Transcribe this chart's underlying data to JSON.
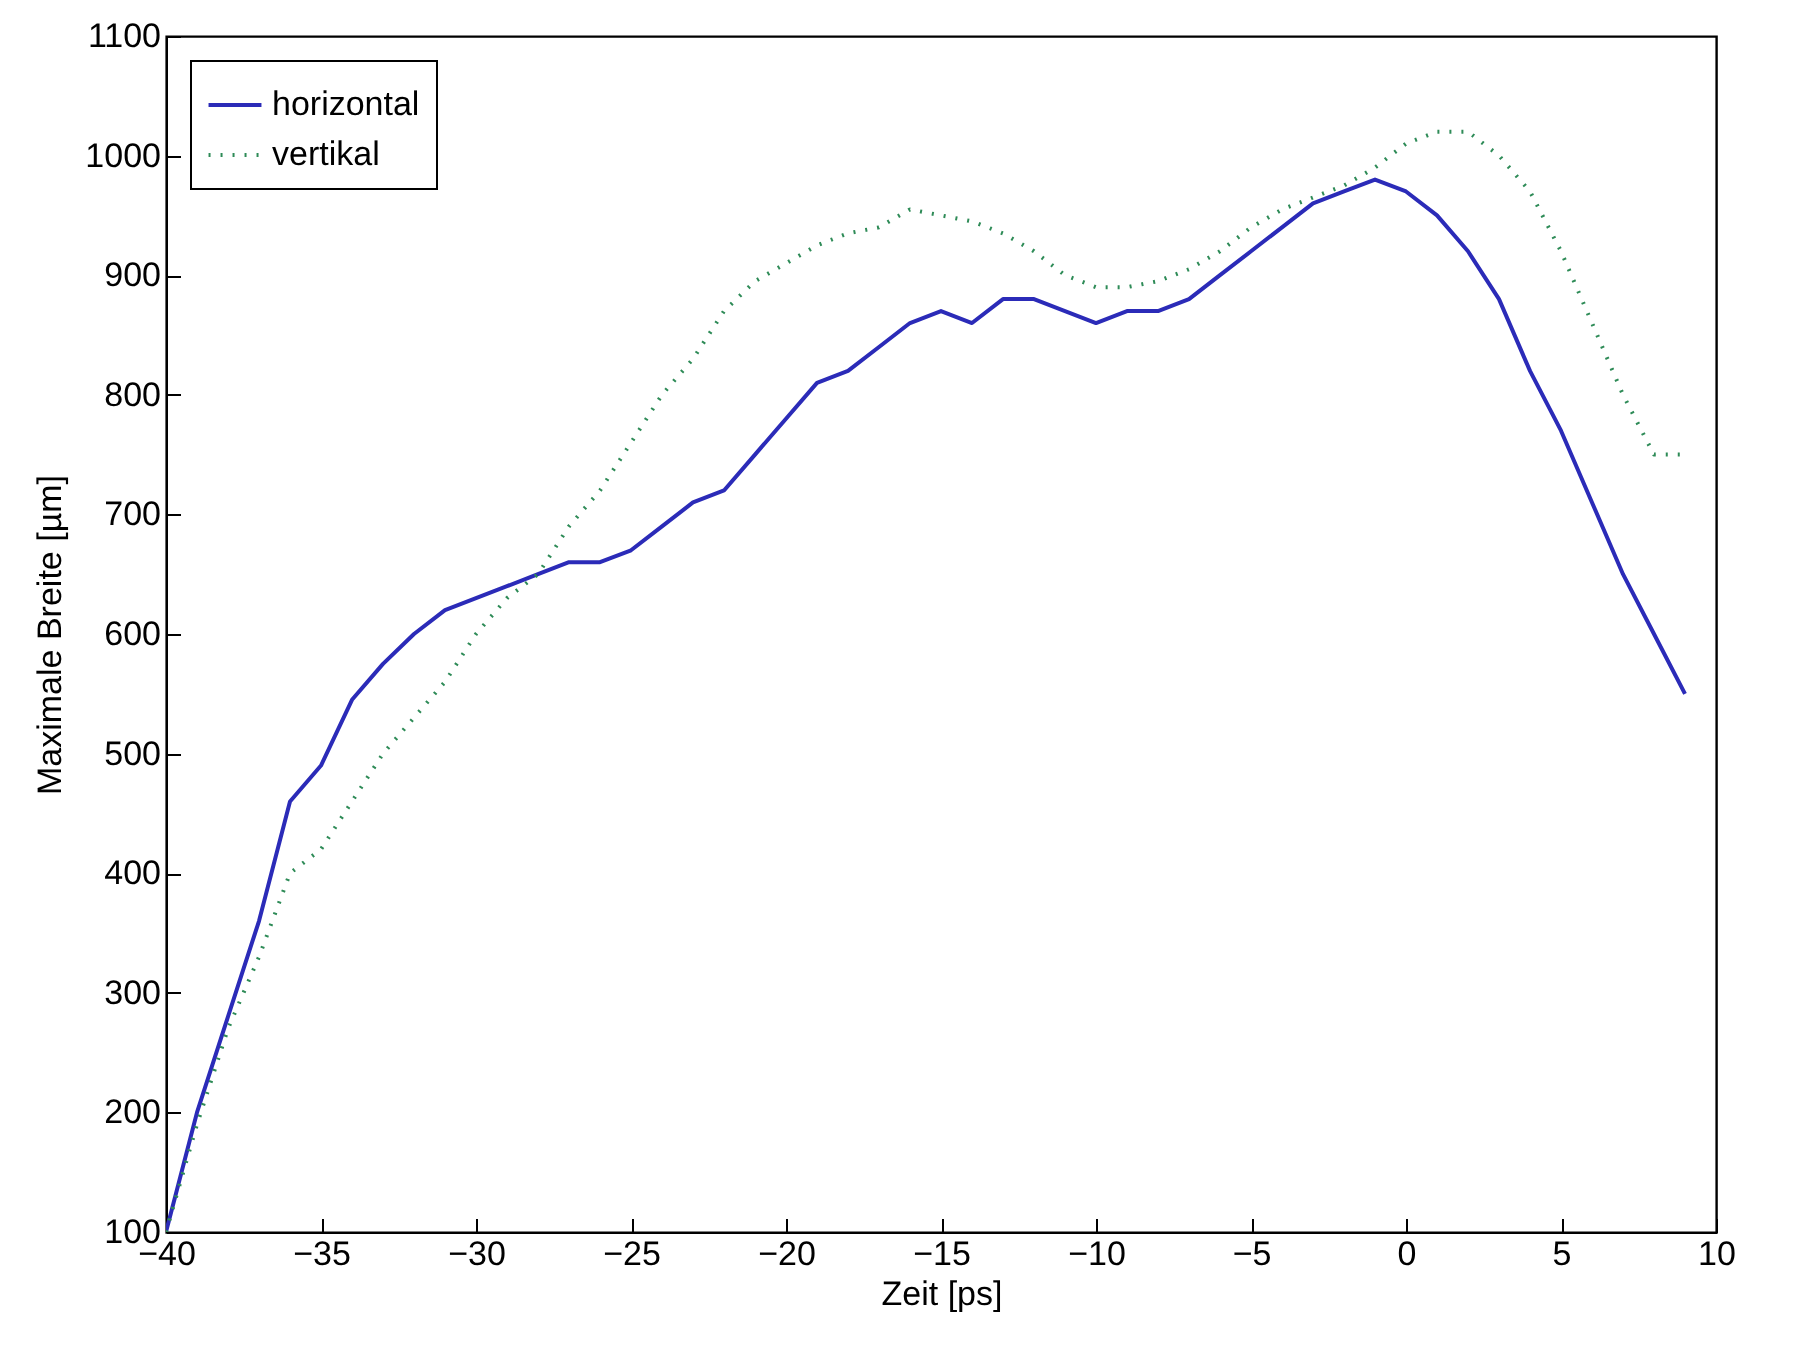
{
  "chart_data": {
    "type": "line",
    "xlabel": "Zeit [ps]",
    "ylabel": "Maximale Breite [µm]",
    "x": [
      -40,
      -39,
      -38,
      -37,
      -36,
      -35,
      -34,
      -33,
      -32,
      -31,
      -30,
      -29,
      -28,
      -27,
      -26,
      -25,
      -24,
      -23,
      -22,
      -21,
      -20,
      -19,
      -18,
      -17,
      -16,
      -15,
      -14,
      -13,
      -12,
      -11,
      -10,
      -9,
      -8,
      -7,
      -6,
      -5,
      -4,
      -3,
      -2,
      -1,
      0,
      1,
      2,
      3,
      4,
      5,
      6,
      7,
      8,
      9
    ],
    "series": [
      {
        "name": "horizontal",
        "color": "#2b2bb8",
        "line_style": "solid",
        "values": [
          100,
          200,
          280,
          360,
          460,
          490,
          545,
          575,
          600,
          620,
          630,
          640,
          650,
          660,
          660,
          670,
          690,
          710,
          720,
          750,
          780,
          810,
          820,
          840,
          860,
          870,
          860,
          880,
          880,
          870,
          860,
          870,
          870,
          880,
          900,
          920,
          940,
          960,
          970,
          980,
          970,
          950,
          920,
          880,
          820,
          770,
          710,
          650,
          600,
          550
        ]
      },
      {
        "name": "vertikal",
        "color": "#2e8b57",
        "line_style": "dotted",
        "values": [
          100,
          190,
          270,
          330,
          400,
          420,
          460,
          500,
          530,
          560,
          600,
          630,
          650,
          690,
          720,
          760,
          800,
          830,
          870,
          895,
          910,
          925,
          935,
          940,
          955,
          950,
          945,
          935,
          920,
          900,
          890,
          890,
          895,
          905,
          920,
          940,
          955,
          965,
          975,
          990,
          1010,
          1020,
          1020,
          1000,
          970,
          920,
          860,
          800,
          750,
          750
        ]
      }
    ],
    "xlim": [
      -40,
      10
    ],
    "xticks": [
      -40,
      -35,
      -30,
      -25,
      -20,
      -15,
      -10,
      -5,
      0,
      5,
      10
    ],
    "ylim": [
      100,
      1100
    ],
    "yticks": [
      100,
      200,
      300,
      400,
      500,
      600,
      700,
      800,
      900,
      1000,
      1100
    ],
    "grid": false,
    "legend": "top left"
  }
}
